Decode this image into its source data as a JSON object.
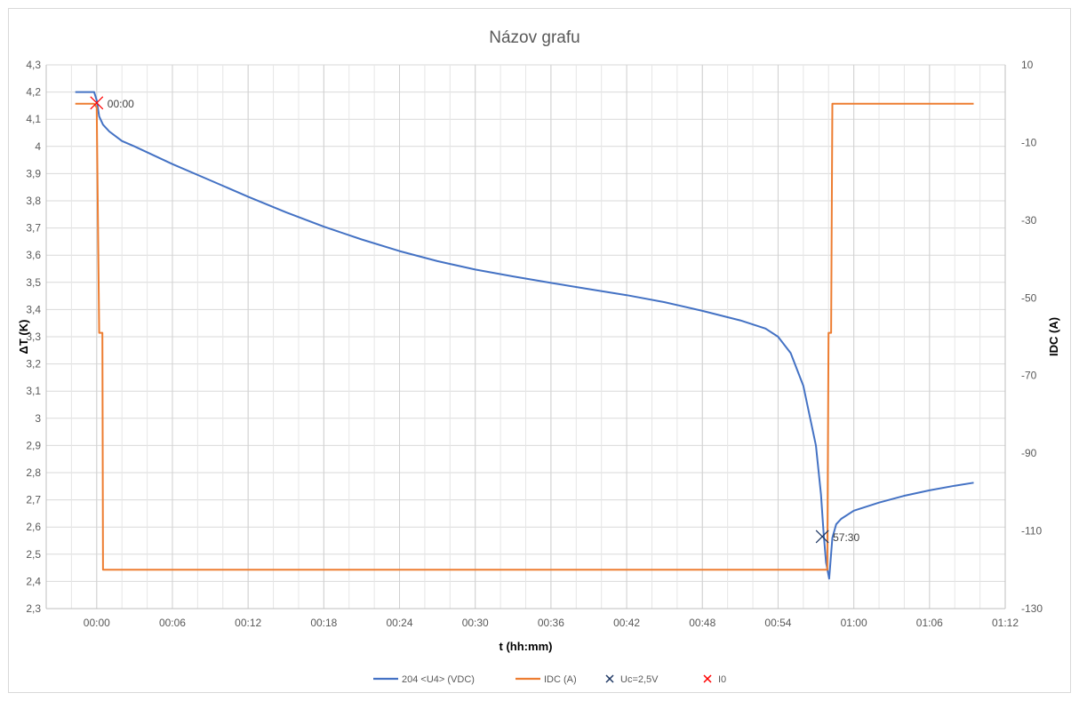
{
  "chart_data": {
    "type": "line",
    "title": "Názov grafu",
    "xlabel": "t (hh:mm)",
    "ylabel": "ΔT (K)",
    "y2label": "IDC (A)",
    "x_unit": "minutes",
    "xlim": [
      -4,
      72
    ],
    "ylim": [
      2.3,
      4.3
    ],
    "y2lim": [
      -130,
      10
    ],
    "x_ticks": [
      {
        "v": 0,
        "label": "00:00"
      },
      {
        "v": 6,
        "label": "00:06"
      },
      {
        "v": 12,
        "label": "00:12"
      },
      {
        "v": 18,
        "label": "00:18"
      },
      {
        "v": 24,
        "label": "00:24"
      },
      {
        "v": 30,
        "label": "00:30"
      },
      {
        "v": 36,
        "label": "00:36"
      },
      {
        "v": 42,
        "label": "00:42"
      },
      {
        "v": 48,
        "label": "00:48"
      },
      {
        "v": 54,
        "label": "00:54"
      },
      {
        "v": 60,
        "label": "01:00"
      },
      {
        "v": 66,
        "label": "01:06"
      },
      {
        "v": 72,
        "label": "01:12"
      }
    ],
    "y_ticks": [
      {
        "v": 4.3,
        "label": "4,3"
      },
      {
        "v": 4.2,
        "label": "4,2"
      },
      {
        "v": 4.1,
        "label": "4,1"
      },
      {
        "v": 4.0,
        "label": "4"
      },
      {
        "v": 3.9,
        "label": "3,9"
      },
      {
        "v": 3.8,
        "label": "3,8"
      },
      {
        "v": 3.7,
        "label": "3,7"
      },
      {
        "v": 3.6,
        "label": "3,6"
      },
      {
        "v": 3.5,
        "label": "3,5"
      },
      {
        "v": 3.4,
        "label": "3,4"
      },
      {
        "v": 3.3,
        "label": "3,3"
      },
      {
        "v": 3.2,
        "label": "3,2"
      },
      {
        "v": 3.1,
        "label": "3,1"
      },
      {
        "v": 3.0,
        "label": "3"
      },
      {
        "v": 2.9,
        "label": "2,9"
      },
      {
        "v": 2.8,
        "label": "2,8"
      },
      {
        "v": 2.7,
        "label": "2,7"
      },
      {
        "v": 2.6,
        "label": "2,6"
      },
      {
        "v": 2.5,
        "label": "2,5"
      },
      {
        "v": 2.4,
        "label": "2,4"
      },
      {
        "v": 2.3,
        "label": "2,3"
      }
    ],
    "y2_ticks": [
      {
        "v": 10,
        "label": "10"
      },
      {
        "v": -10,
        "label": "-10"
      },
      {
        "v": -30,
        "label": "-30"
      },
      {
        "v": -50,
        "label": "-50"
      },
      {
        "v": -70,
        "label": "-70"
      },
      {
        "v": -90,
        "label": "-90"
      },
      {
        "v": -110,
        "label": "-110"
      },
      {
        "v": -130,
        "label": "-130"
      }
    ],
    "grid": true,
    "legend_position": "bottom",
    "series": [
      {
        "name": "204 <U4> (VDC)",
        "axis": "left",
        "color": "#4472C4",
        "points": [
          [
            -1.7,
            4.2
          ],
          [
            -0.2,
            4.2
          ],
          [
            0,
            4.17
          ],
          [
            0.2,
            4.11
          ],
          [
            0.5,
            4.08
          ],
          [
            1,
            4.055
          ],
          [
            2,
            4.02
          ],
          [
            3,
            4.0
          ],
          [
            6,
            3.935
          ],
          [
            9,
            3.875
          ],
          [
            12,
            3.815
          ],
          [
            15,
            3.758
          ],
          [
            18,
            3.705
          ],
          [
            21,
            3.658
          ],
          [
            24,
            3.615
          ],
          [
            27,
            3.578
          ],
          [
            30,
            3.547
          ],
          [
            33,
            3.522
          ],
          [
            36,
            3.498
          ],
          [
            39,
            3.475
          ],
          [
            42,
            3.453
          ],
          [
            45,
            3.427
          ],
          [
            48,
            3.395
          ],
          [
            51,
            3.36
          ],
          [
            53,
            3.33
          ],
          [
            54,
            3.3
          ],
          [
            55,
            3.24
          ],
          [
            56,
            3.12
          ],
          [
            57,
            2.9
          ],
          [
            57.4,
            2.72
          ],
          [
            57.6,
            2.58
          ],
          [
            57.8,
            2.47
          ],
          [
            58.05,
            2.41
          ],
          [
            58.3,
            2.56
          ],
          [
            58.6,
            2.61
          ],
          [
            59,
            2.63
          ],
          [
            60,
            2.66
          ],
          [
            62,
            2.69
          ],
          [
            64,
            2.715
          ],
          [
            66,
            2.735
          ],
          [
            68,
            2.752
          ],
          [
            69.5,
            2.763
          ]
        ]
      },
      {
        "name": "IDC (A)",
        "axis": "right",
        "color": "#ED7D31",
        "points": [
          [
            -1.7,
            0
          ],
          [
            -0.2,
            0
          ],
          [
            0,
            -1
          ],
          [
            0.2,
            -59
          ],
          [
            0.45,
            -59
          ],
          [
            0.5,
            -120
          ],
          [
            57.5,
            -120
          ],
          [
            57.9,
            -120
          ],
          [
            58.0,
            -59
          ],
          [
            58.2,
            -59
          ],
          [
            58.3,
            0
          ],
          [
            69.5,
            0
          ]
        ]
      },
      {
        "name": "Uc=2,5V",
        "axis": "left",
        "type": "marker",
        "marker": "x",
        "color": "#1F3864",
        "points": [
          [
            57.5,
            2.565
          ]
        ],
        "label": "57:30"
      },
      {
        "name": "I0",
        "axis": "left",
        "type": "marker",
        "marker": "x",
        "color": "#FF0000",
        "points": [
          [
            0,
            4.16
          ]
        ],
        "label": "00:00"
      }
    ]
  }
}
